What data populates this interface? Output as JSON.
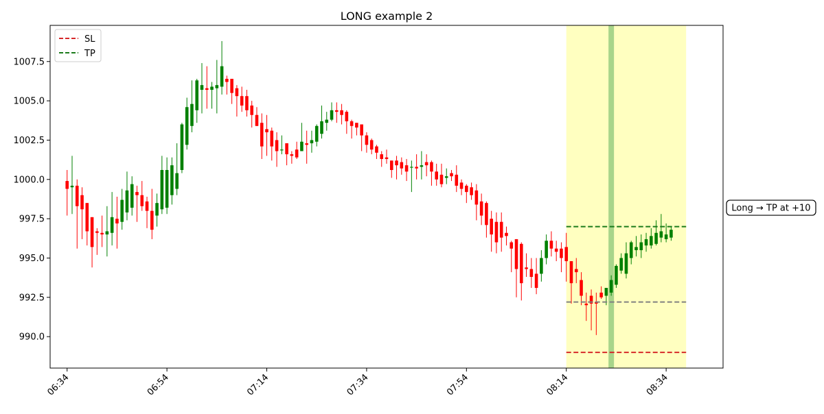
{
  "chart_data": {
    "type": "candlestick",
    "title": "LONG example 2",
    "xlabel": "",
    "ylabel": "",
    "x_unit": "minutes from 06:34",
    "xlim": [
      -3.4,
      131.4
    ],
    "ylim": [
      988.0,
      1009.8
    ],
    "grid": false,
    "legend_placement": "upper-left",
    "x_ticks": [
      {
        "t": 0,
        "label": "06:34"
      },
      {
        "t": 20,
        "label": "06:54"
      },
      {
        "t": 40,
        "label": "07:14"
      },
      {
        "t": 60,
        "label": "07:34"
      },
      {
        "t": 80,
        "label": "07:54"
      },
      {
        "t": 100,
        "label": "08:14"
      },
      {
        "t": 120,
        "label": "08:34"
      }
    ],
    "y_ticks": [
      {
        "v": 990.0,
        "label": "990.0"
      },
      {
        "v": 992.5,
        "label": "992.5"
      },
      {
        "v": 995.0,
        "label": "995.0"
      },
      {
        "v": 997.5,
        "label": "997.5"
      },
      {
        "v": 1000.0,
        "label": "1000.0"
      },
      {
        "v": 1002.5,
        "label": "1002.5"
      },
      {
        "v": 1005.0,
        "label": "1005.0"
      },
      {
        "v": 1007.5,
        "label": "1007.5"
      }
    ],
    "up_color": "#008000",
    "down_color": "#ff0000",
    "candles": [
      [
        0,
        999.9,
        1000.6,
        997.7,
        999.4
      ],
      [
        1,
        999.5,
        1001.5,
        997.8,
        999.6
      ],
      [
        2,
        999.6,
        1000.0,
        995.6,
        998.3
      ],
      [
        3,
        999.0,
        999.5,
        996.2,
        998.1
      ],
      [
        4,
        998.5,
        998.5,
        995.8,
        996.7
      ],
      [
        5,
        997.6,
        997.6,
        994.4,
        995.7
      ],
      [
        6,
        996.7,
        996.9,
        995.2,
        996.6
      ],
      [
        7,
        996.6,
        997.7,
        995.7,
        996.5
      ],
      [
        8,
        996.5,
        998.3,
        995.1,
        996.7
      ],
      [
        9,
        996.6,
        999.2,
        995.8,
        997.6
      ],
      [
        10,
        997.5,
        998.9,
        995.6,
        997.2
      ],
      [
        11,
        997.3,
        999.4,
        996.8,
        998.7
      ],
      [
        12,
        997.9,
        1000.5,
        997.4,
        999.3
      ],
      [
        13,
        998.2,
        1000.2,
        997.7,
        999.7
      ],
      [
        14,
        999.2,
        999.6,
        997.3,
        999.0
      ],
      [
        15,
        999.0,
        999.9,
        998.0,
        998.3
      ],
      [
        16,
        998.6,
        998.9,
        996.9,
        998.0
      ],
      [
        17,
        998.0,
        999.4,
        996.2,
        996.8
      ],
      [
        18,
        997.7,
        999.1,
        997.0,
        998.5
      ],
      [
        19,
        998.1,
        1001.5,
        997.8,
        1000.6
      ],
      [
        20,
        998.2,
        1001.4,
        997.8,
        1000.6
      ],
      [
        21,
        999.0,
        1001.4,
        998.4,
        1000.9
      ],
      [
        22,
        999.4,
        1002.3,
        999.0,
        1000.4
      ],
      [
        23,
        1000.6,
        1003.6,
        1000.4,
        1003.5
      ],
      [
        24,
        1002.2,
        1005.2,
        1001.9,
        1004.6
      ],
      [
        25,
        1003.4,
        1006.3,
        1003.0,
        1004.8
      ],
      [
        26,
        1004.4,
        1006.4,
        1003.6,
        1006.3
      ],
      [
        27,
        1005.7,
        1007.4,
        1004.2,
        1006.0
      ],
      [
        28,
        1005.8,
        1007.2,
        1004.5,
        1005.7
      ],
      [
        29,
        1005.7,
        1006.2,
        1004.5,
        1005.9
      ],
      [
        30,
        1005.8,
        1007.6,
        1004.2,
        1006.0
      ],
      [
        31,
        1005.9,
        1008.8,
        1005.4,
        1007.2
      ],
      [
        32,
        1006.4,
        1006.6,
        1005.4,
        1006.2
      ],
      [
        33,
        1006.4,
        1006.4,
        1004.8,
        1005.5
      ],
      [
        34,
        1005.8,
        1006.0,
        1004.0,
        1005.3
      ],
      [
        35,
        1005.3,
        1005.9,
        1004.3,
        1004.7
      ],
      [
        36,
        1005.3,
        1005.7,
        1004.0,
        1004.4
      ],
      [
        37,
        1004.7,
        1005.0,
        1003.3,
        1004.1
      ],
      [
        38,
        1004.1,
        1004.6,
        1003.4,
        1003.4
      ],
      [
        39,
        1003.6,
        1004.2,
        1001.3,
        1002.1
      ],
      [
        40,
        1003.2,
        1004.1,
        1001.5,
        1003.0
      ],
      [
        41,
        1003.1,
        1003.3,
        1001.2,
        1002.1
      ],
      [
        42,
        1002.5,
        1003.0,
        1000.8,
        1001.8
      ],
      [
        43,
        1001.9,
        1002.8,
        1001.6,
        1001.9
      ],
      [
        44,
        1002.3,
        1002.3,
        1000.9,
        1001.6
      ],
      [
        45,
        1001.6,
        1001.8,
        1001.0,
        1001.5
      ],
      [
        46,
        1001.9,
        1002.4,
        1001.3,
        1001.4
      ],
      [
        47,
        1001.8,
        1003.6,
        1001.8,
        1002.4
      ],
      [
        48,
        1002.3,
        1003.1,
        1001.0,
        1002.2
      ],
      [
        49,
        1002.3,
        1003.1,
        1001.7,
        1002.5
      ],
      [
        50,
        1002.4,
        1003.5,
        1002.1,
        1003.4
      ],
      [
        51,
        1002.9,
        1004.7,
        1002.6,
        1003.7
      ],
      [
        52,
        1003.6,
        1004.3,
        1003.1,
        1003.8
      ],
      [
        53,
        1003.8,
        1004.9,
        1003.7,
        1004.4
      ],
      [
        54,
        1004.4,
        1004.9,
        1003.6,
        1004.3
      ],
      [
        55,
        1004.4,
        1004.8,
        1003.5,
        1004.1
      ],
      [
        56,
        1004.3,
        1004.4,
        1002.9,
        1003.7
      ],
      [
        57,
        1003.7,
        1003.8,
        1002.6,
        1003.4
      ],
      [
        58,
        1003.6,
        1003.6,
        1002.8,
        1003.3
      ],
      [
        59,
        1003.5,
        1003.5,
        1001.8,
        1002.8
      ],
      [
        60,
        1002.8,
        1003.0,
        1001.7,
        1002.2
      ],
      [
        61,
        1002.5,
        1002.6,
        1001.6,
        1001.9
      ],
      [
        62,
        1002.1,
        1002.2,
        1001.3,
        1001.7
      ],
      [
        63,
        1001.6,
        1001.8,
        1000.8,
        1001.3
      ],
      [
        64,
        1001.4,
        1001.9,
        1001.0,
        1001.3
      ],
      [
        65,
        1001.2,
        1001.2,
        1000.1,
        1000.6
      ],
      [
        66,
        1001.2,
        1001.5,
        1000.0,
        1000.9
      ],
      [
        67,
        1001.1,
        1001.4,
        1000.3,
        1000.7
      ],
      [
        68,
        1000.9,
        1001.3,
        999.9,
        1000.5
      ],
      [
        69,
        1000.8,
        1001.2,
        999.2,
        1000.8
      ],
      [
        70,
        1000.8,
        1001.6,
        1000.0,
        1000.7
      ],
      [
        71,
        1000.8,
        1001.8,
        1000.0,
        1000.9
      ],
      [
        72,
        1001.1,
        1001.6,
        1000.2,
        1000.9
      ],
      [
        73,
        1001.1,
        1001.2,
        999.6,
        1000.5
      ],
      [
        74,
        1000.5,
        1001.0,
        999.6,
        1000.0
      ],
      [
        75,
        1000.3,
        1001.0,
        999.5,
        999.7
      ],
      [
        76,
        1000.1,
        1000.7,
        999.7,
        1000.2
      ],
      [
        77,
        1000.4,
        1000.6,
        999.9,
        1000.2
      ],
      [
        78,
        1000.3,
        1000.9,
        999.2,
        999.6
      ],
      [
        79,
        999.8,
        1000.0,
        999.0,
        999.4
      ],
      [
        80,
        999.6,
        999.7,
        998.5,
        999.2
      ],
      [
        81,
        999.5,
        999.8,
        998.7,
        999.0
      ],
      [
        82,
        999.3,
        999.7,
        997.4,
        998.4
      ],
      [
        83,
        998.6,
        999.1,
        997.1,
        997.7
      ],
      [
        84,
        998.5,
        998.6,
        996.3,
        997.1
      ],
      [
        85,
        997.5,
        998.0,
        995.4,
        996.5
      ],
      [
        86,
        997.3,
        997.9,
        995.3,
        996.0
      ],
      [
        87,
        997.3,
        997.9,
        995.4,
        996.3
      ],
      [
        88,
        996.6,
        997.0,
        995.8,
        996.4
      ],
      [
        89,
        996.0,
        996.1,
        994.1,
        995.6
      ],
      [
        90,
        996.2,
        996.2,
        992.5,
        994.3
      ],
      [
        91,
        995.9,
        996.0,
        992.3,
        993.4
      ],
      [
        92,
        994.4,
        995.3,
        993.8,
        994.3
      ],
      [
        93,
        994.3,
        995.0,
        993.1,
        993.8
      ],
      [
        94,
        994.0,
        995.0,
        992.7,
        993.1
      ],
      [
        95,
        994.0,
        995.5,
        993.5,
        995.0
      ],
      [
        96,
        995.0,
        996.5,
        994.6,
        996.1
      ],
      [
        97,
        996.1,
        996.7,
        995.1,
        995.6
      ],
      [
        98,
        995.6,
        996.1,
        994.8,
        995.4
      ],
      [
        99,
        995.6,
        996.0,
        994.1,
        995.0
      ],
      [
        100,
        995.7,
        996.6,
        993.5,
        994.8
      ],
      [
        101,
        994.8,
        994.8,
        992.1,
        993.4
      ],
      [
        102,
        994.3,
        995.0,
        993.4,
        994.1
      ],
      [
        103,
        993.6,
        994.1,
        992.0,
        992.6
      ],
      [
        104,
        992.1,
        992.8,
        991.0,
        992.0
      ],
      [
        105,
        992.6,
        993.0,
        990.4,
        992.1
      ],
      [
        106,
        992.2,
        992.8,
        990.1,
        992.1
      ],
      [
        107,
        992.8,
        993.2,
        992.4,
        992.5
      ],
      [
        108,
        992.6,
        993.1,
        992.0,
        993.1
      ],
      [
        109,
        992.8,
        993.9,
        992.6,
        993.6
      ],
      [
        110,
        993.3,
        994.6,
        993.1,
        994.5
      ],
      [
        111,
        994.2,
        995.3,
        994.0,
        995.0
      ],
      [
        112,
        994.0,
        996.0,
        993.7,
        995.3
      ],
      [
        113,
        995.0,
        996.1,
        994.6,
        996.0
      ],
      [
        114,
        995.5,
        996.4,
        995.1,
        995.7
      ],
      [
        115,
        995.5,
        996.5,
        995.0,
        996.0
      ],
      [
        116,
        995.8,
        996.6,
        995.4,
        996.2
      ],
      [
        117,
        995.8,
        996.9,
        995.6,
        996.4
      ],
      [
        118,
        995.9,
        997.4,
        995.8,
        996.6
      ],
      [
        119,
        996.3,
        997.8,
        996.0,
        996.7
      ],
      [
        120,
        996.2,
        997.2,
        996.0,
        996.5
      ],
      [
        121,
        996.3,
        997.0,
        996.1,
        996.8
      ]
    ],
    "shaded_region": {
      "t_start": 100,
      "t_end": 124,
      "color": "#ffffc0",
      "marker_t": 109,
      "marker_color": "#a8d58a"
    },
    "levels": [
      {
        "name": "SL",
        "value": 989.0,
        "color": "#d62728",
        "style": "dashed",
        "t_start": 100,
        "t_end": 124
      },
      {
        "name": "TP",
        "value": 997.0,
        "color": "#1a7a1a",
        "style": "dashed",
        "t_start": 100,
        "t_end": 124
      },
      {
        "name": "",
        "value": 992.2,
        "color": "#808080",
        "style": "dashed",
        "t_start": 100,
        "t_end": 124
      }
    ],
    "legend": [
      {
        "label": "SL",
        "color": "#d62728"
      },
      {
        "label": "TP",
        "color": "#1a7a1a"
      }
    ],
    "annotation": {
      "text": "Long → TP at +10",
      "value": 998.2
    }
  }
}
